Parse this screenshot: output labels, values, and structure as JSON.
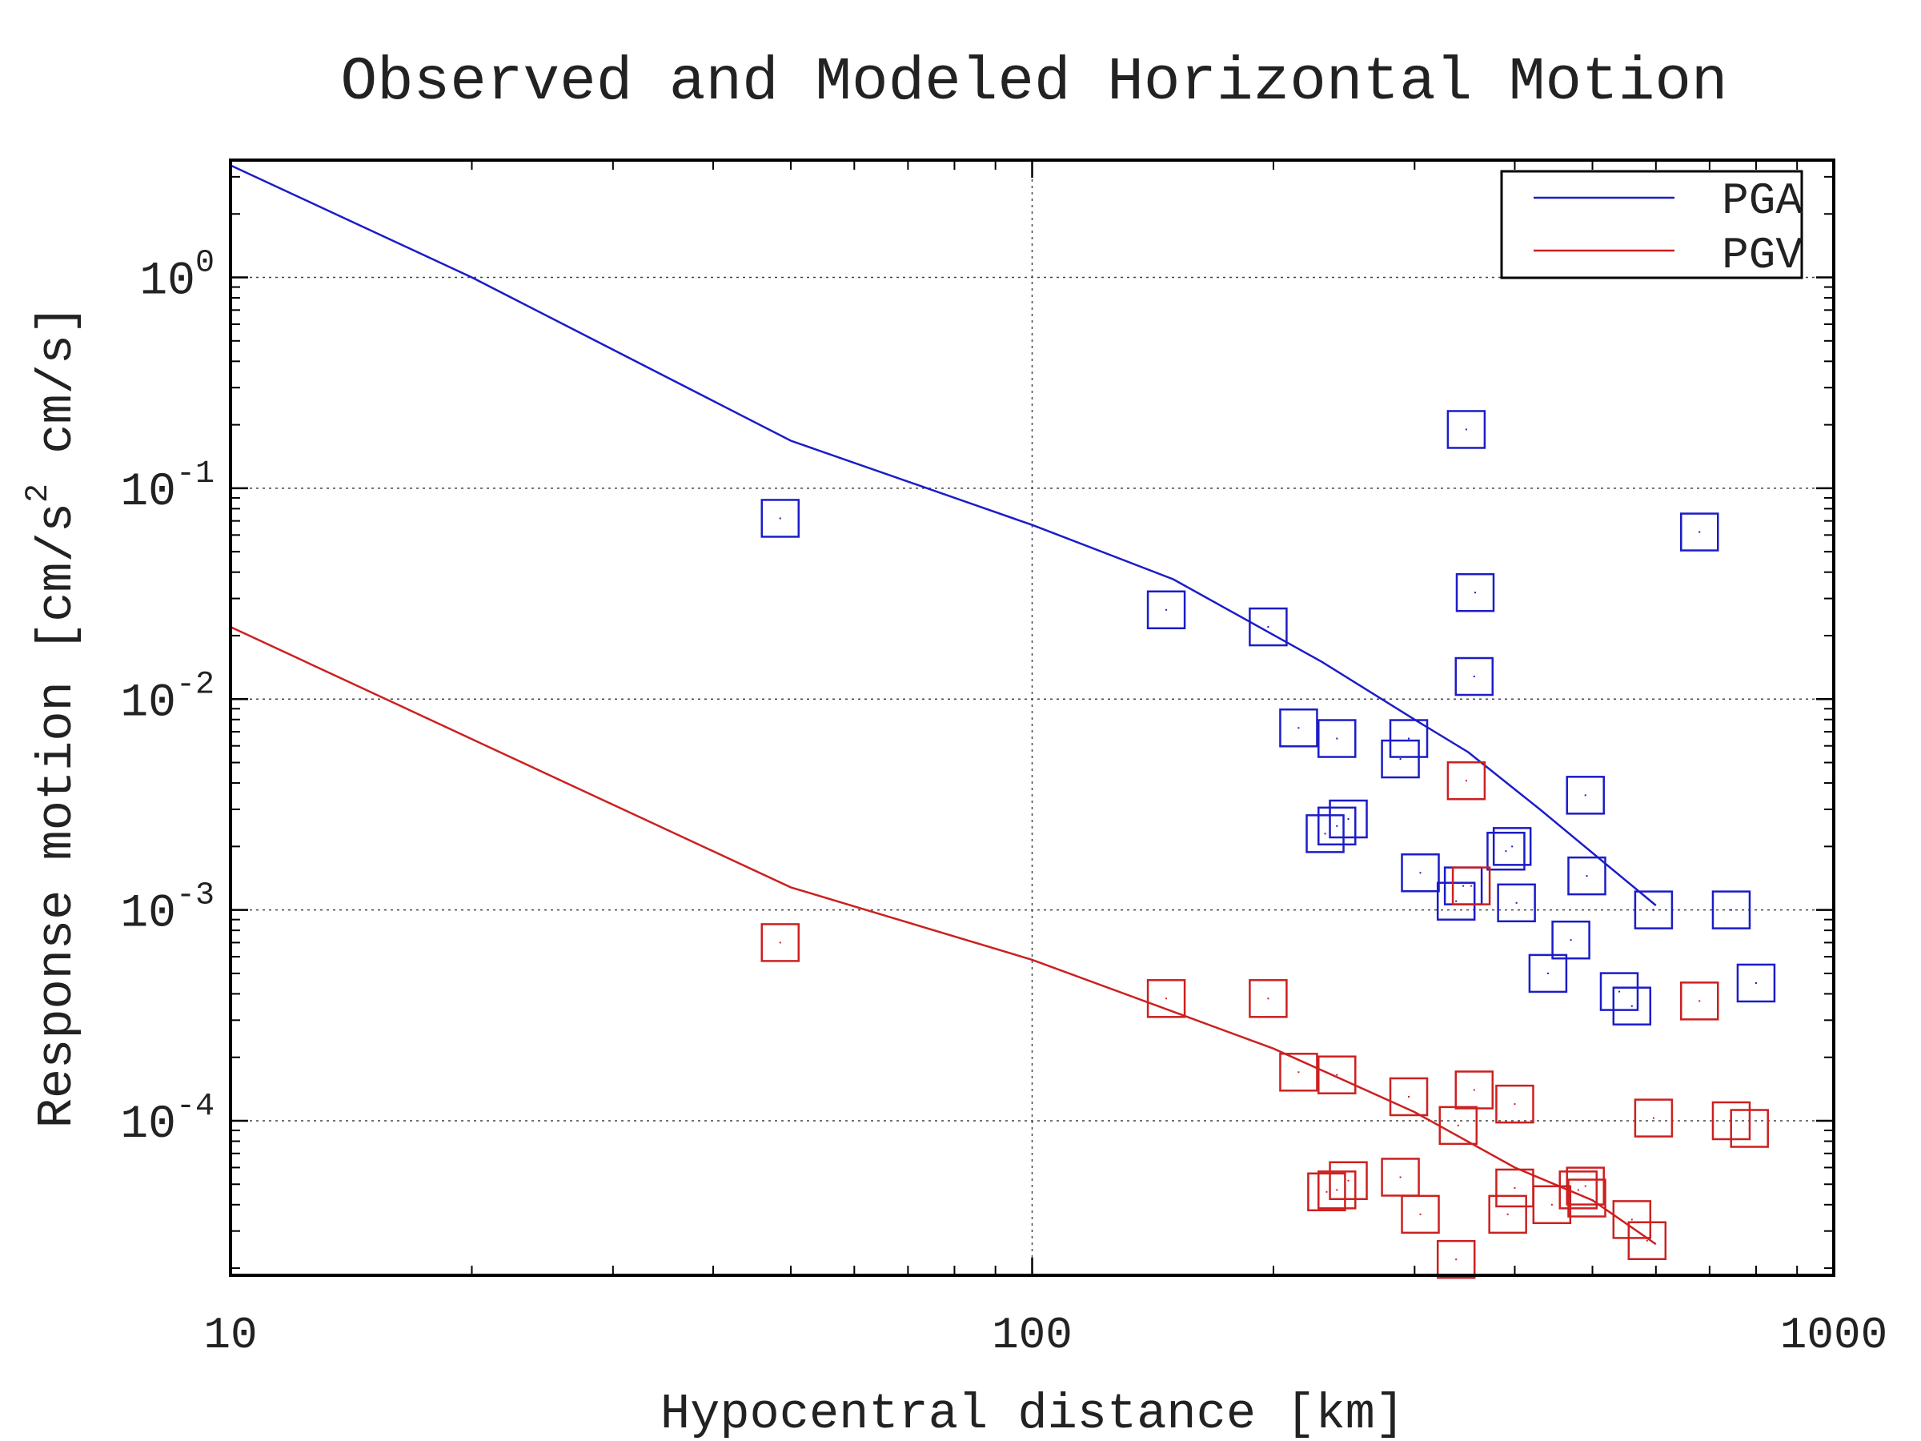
{
  "chart_data": {
    "type": "scatter",
    "title": "Observed and Modeled Horizontal Motion",
    "xlabel": "Hypocentral distance [km]",
    "ylabel": {
      "pre": "Response motion  [cm/s",
      "sup": "2",
      "post": "  cm/s]"
    },
    "x_scale": "log",
    "y_scale": "log",
    "xlim": [
      10,
      1000
    ],
    "ylim": [
      1.85e-05,
      3.6
    ],
    "grid": true,
    "legend_position": "top-right",
    "x_ticks": [
      {
        "value": 10,
        "label": "10"
      },
      {
        "value": 100,
        "label": "100"
      },
      {
        "value": 1000,
        "label": "1000"
      }
    ],
    "y_ticks": [
      {
        "value": 1,
        "base": "10",
        "exp": "0"
      },
      {
        "value": 0.1,
        "base": "10",
        "exp": "-1"
      },
      {
        "value": 0.01,
        "base": "10",
        "exp": "-2"
      },
      {
        "value": 0.001,
        "base": "10",
        "exp": "-3"
      },
      {
        "value": 0.0001,
        "base": "10",
        "exp": "-4"
      }
    ],
    "series": [
      {
        "name": "PGA",
        "color": "#1c1cc8",
        "line": [
          [
            10,
            3.4
          ],
          [
            20,
            1.0
          ],
          [
            50,
            0.168
          ],
          [
            100,
            0.067
          ],
          [
            150,
            0.037
          ],
          [
            230,
            0.015
          ],
          [
            300,
            0.008
          ],
          [
            350,
            0.0056
          ],
          [
            430,
            0.003
          ],
          [
            600,
            0.00105
          ]
        ],
        "points": [
          [
            48.5,
            0.072
          ],
          [
            147,
            0.0265
          ],
          [
            197,
            0.022
          ],
          [
            215,
            0.0073
          ],
          [
            240,
            0.0065
          ],
          [
            232,
            0.0023
          ],
          [
            240,
            0.0025
          ],
          [
            248,
            0.0027
          ],
          [
            288,
            0.0052
          ],
          [
            295,
            0.0065
          ],
          [
            305,
            0.0015
          ],
          [
            338,
            0.0011
          ],
          [
            345,
            0.0013
          ],
          [
            348,
            0.19
          ],
          [
            357,
            0.032
          ],
          [
            356,
            0.0128
          ],
          [
            390,
            0.0019
          ],
          [
            397,
            0.002
          ],
          [
            402,
            0.00108
          ],
          [
            440,
            0.0005
          ],
          [
            470,
            0.00072
          ],
          [
            490,
            0.0035
          ],
          [
            492,
            0.00145
          ],
          [
            540,
            0.00041
          ],
          [
            560,
            0.00035
          ],
          [
            596,
            0.001
          ],
          [
            680,
            0.062
          ],
          [
            745,
            0.001
          ],
          [
            800,
            0.00045
          ]
        ]
      },
      {
        "name": "PGV",
        "color": "#cc2020",
        "line": [
          [
            10,
            0.022
          ],
          [
            50,
            0.00128
          ],
          [
            100,
            0.00058
          ],
          [
            200,
            0.00022
          ],
          [
            300,
            0.00011
          ],
          [
            400,
            6e-05
          ],
          [
            500,
            4.2e-05
          ],
          [
            600,
            2.6e-05
          ]
        ],
        "points": [
          [
            48.5,
            0.0007
          ],
          [
            147,
            0.00038
          ],
          [
            197,
            0.00038
          ],
          [
            215,
            0.00017
          ],
          [
            240,
            0.000165
          ],
          [
            233,
            4.6e-05
          ],
          [
            240,
            4.7e-05
          ],
          [
            248,
            5.2e-05
          ],
          [
            288,
            5.4e-05
          ],
          [
            295,
            0.00013
          ],
          [
            305,
            3.6e-05
          ],
          [
            338,
            2.2e-05
          ],
          [
            340,
            9.5e-05
          ],
          [
            348,
            0.0041
          ],
          [
            353,
            0.0013
          ],
          [
            356,
            0.00014
          ],
          [
            392,
            3.6e-05
          ],
          [
            400,
            4.8e-05
          ],
          [
            400,
            0.00012
          ],
          [
            445,
            4e-05
          ],
          [
            480,
            4.7e-05
          ],
          [
            490,
            4.9e-05
          ],
          [
            492,
            4.3e-05
          ],
          [
            560,
            3.4e-05
          ],
          [
            585,
            2.7e-05
          ],
          [
            596,
            0.000103
          ],
          [
            680,
            0.00037
          ],
          [
            745,
            0.0001
          ],
          [
            785,
            9.2e-05
          ]
        ]
      }
    ]
  }
}
